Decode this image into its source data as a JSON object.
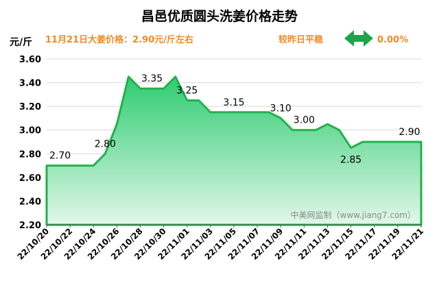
{
  "header": {
    "title": "昌邑优质圆头洗姜价格走势",
    "unit": "元/斤",
    "price_note": "11月21日大姜价格：2.90元/斤左右",
    "trend_note": "较昨日平稳",
    "change": "0.00%"
  },
  "watermark": "中美网监制（www.jiang7.com）",
  "colors": {
    "line": "#22b14c",
    "fill_top": "#2ecc71",
    "fill_bottom": "#e2f7e9",
    "accent": "#f08a24",
    "arrow": "#1aa64a"
  },
  "chart_data": {
    "type": "area",
    "title": "昌邑优质圆头洗姜价格走势",
    "ylabel": "元/斤",
    "ylim": [
      2.2,
      3.6
    ],
    "yticks": [
      "2.20",
      "2.40",
      "2.60",
      "2.80",
      "3.00",
      "3.20",
      "3.40",
      "3.60"
    ],
    "xticks": [
      "22/10/20",
      "22/10/22",
      "22/10/24",
      "22/10/26",
      "22/10/28",
      "22/10/30",
      "22/11/01",
      "22/11/03",
      "22/11/05",
      "22/11/07",
      "22/11/09",
      "22/11/11",
      "22/11/13",
      "22/11/15",
      "22/11/17",
      "22/11/19",
      "22/11/21"
    ],
    "dates": [
      "22/10/20",
      "22/10/21",
      "22/10/22",
      "22/10/23",
      "22/10/24",
      "22/10/25",
      "22/10/26",
      "22/10/27",
      "22/10/28",
      "22/10/29",
      "22/10/30",
      "22/10/31",
      "22/11/01",
      "22/11/02",
      "22/11/03",
      "22/11/04",
      "22/11/05",
      "22/11/06",
      "22/11/07",
      "22/11/08",
      "22/11/09",
      "22/11/10",
      "22/11/11",
      "22/11/12",
      "22/11/13",
      "22/11/14",
      "22/11/15",
      "22/11/16",
      "22/11/17",
      "22/11/18",
      "22/11/19",
      "22/11/20",
      "22/11/21"
    ],
    "values": [
      2.7,
      2.7,
      2.7,
      2.7,
      2.7,
      2.8,
      3.05,
      3.45,
      3.35,
      3.35,
      3.35,
      3.45,
      3.25,
      3.25,
      3.15,
      3.15,
      3.15,
      3.15,
      3.15,
      3.15,
      3.1,
      3.0,
      3.0,
      3.0,
      3.05,
      3.0,
      2.85,
      2.9,
      2.9,
      2.9,
      2.9,
      2.9,
      2.9
    ],
    "data_labels": [
      {
        "date": "22/10/20",
        "text": "2.70"
      },
      {
        "date": "22/10/25",
        "text": "2.80"
      },
      {
        "date": "22/10/29",
        "text": "3.35"
      },
      {
        "date": "22/11/01",
        "text": "3.25"
      },
      {
        "date": "22/11/05",
        "text": "3.15"
      },
      {
        "date": "22/11/09",
        "text": "3.10"
      },
      {
        "date": "22/11/11",
        "text": "3.00"
      },
      {
        "date": "22/11/15",
        "text": "2.85"
      },
      {
        "date": "22/11/20",
        "text": "2.90"
      }
    ],
    "grid": true
  }
}
